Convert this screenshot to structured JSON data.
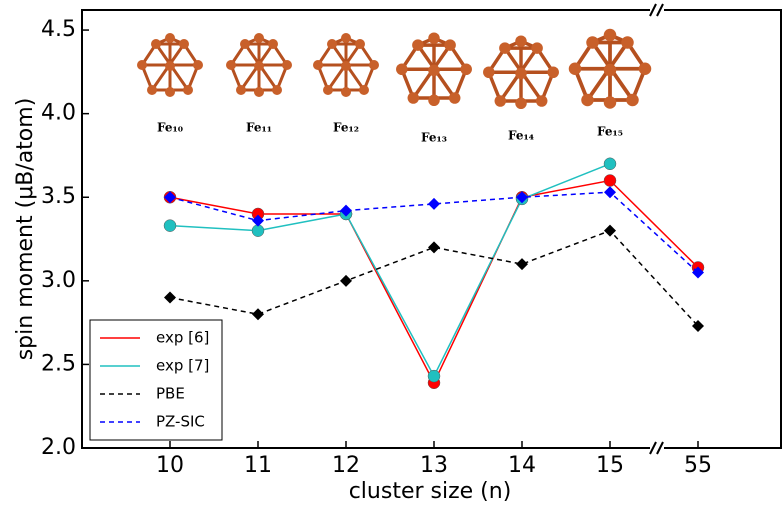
{
  "chart_data": {
    "type": "line",
    "xlabel": "cluster size (n)",
    "ylabel": "spin moment (μB/atom)",
    "categories": [
      "10",
      "11",
      "12",
      "13",
      "14",
      "15",
      "55"
    ],
    "ylim": [
      2.0,
      4.62
    ],
    "yticks": [
      {
        "value": 2.0,
        "label": "2.0"
      },
      {
        "value": 2.5,
        "label": "2.5"
      },
      {
        "value": 3.0,
        "label": "3.0"
      },
      {
        "value": 3.5,
        "label": "3.5"
      },
      {
        "value": 4.0,
        "label": "4.0"
      },
      {
        "value": 4.5,
        "label": "4.5"
      }
    ],
    "series": [
      {
        "name": "exp [6]",
        "color": "#ff0000",
        "linestyle": "solid",
        "marker": "circle",
        "values": [
          3.5,
          3.4,
          3.4,
          2.39,
          3.5,
          3.6,
          3.08
        ]
      },
      {
        "name": "exp [7]",
        "color": "#20c0c0",
        "linestyle": "solid",
        "marker": "circle",
        "values": [
          3.33,
          3.3,
          3.4,
          2.43,
          3.49,
          3.7,
          null
        ]
      },
      {
        "name": "PBE",
        "color": "#000000",
        "linestyle": "dashed",
        "marker": "diamond",
        "values": [
          2.9,
          2.8,
          3.0,
          3.2,
          3.1,
          3.3,
          2.73
        ]
      },
      {
        "name": "PZ-SIC",
        "color": "#0000ff",
        "linestyle": "dashed",
        "marker": "diamond",
        "values": [
          3.5,
          3.36,
          3.42,
          3.46,
          3.5,
          3.53,
          3.05
        ]
      }
    ],
    "annotations": [
      "Fe₁₀",
      "Fe₁₁",
      "Fe₁₂",
      "Fe₁₃",
      "Fe₁₄",
      "Fe₁₅"
    ],
    "legend": "lower left"
  }
}
